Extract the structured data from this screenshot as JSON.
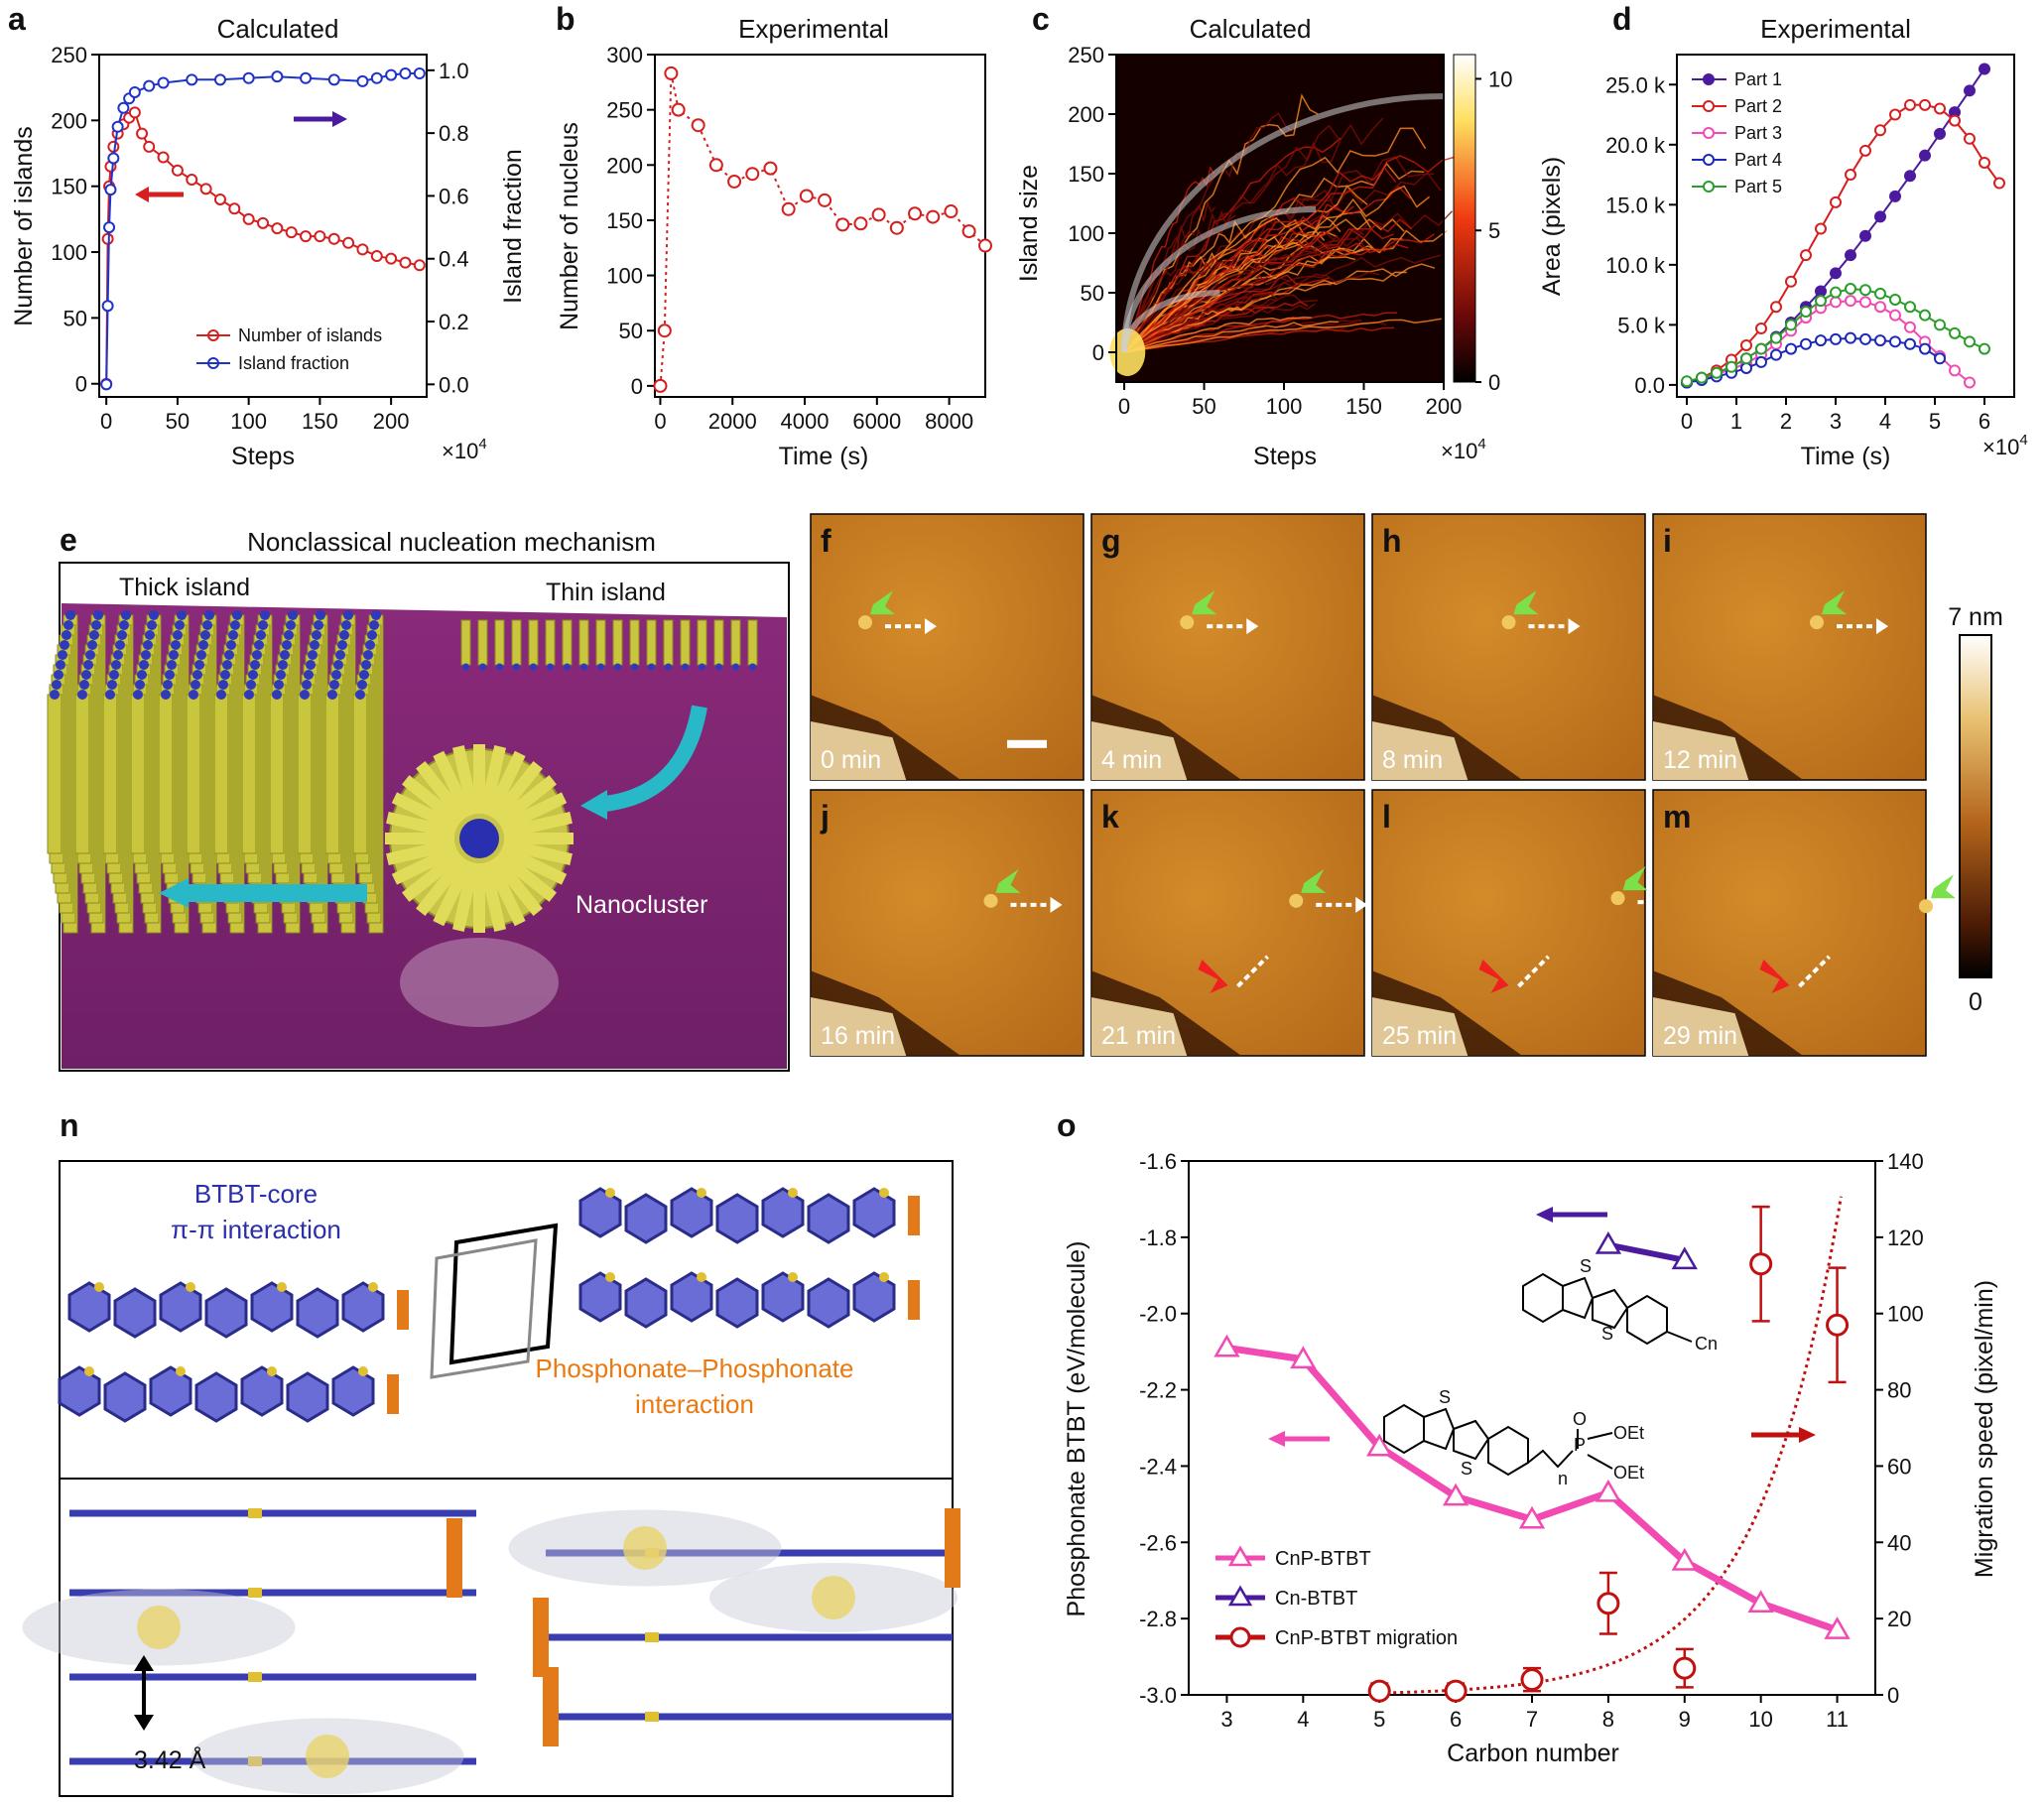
{
  "colors": {
    "red": "#d61f1f",
    "blue": "#1f33c8",
    "purple": "#4b1a9e",
    "magenta": "#f24ab3",
    "navy": "#1d2ab8",
    "green": "#2a9d2a",
    "darkred": "#c11010",
    "teal": "#29b8c8",
    "afm": "#c77d1e"
  },
  "panels": {
    "a": {
      "label": "a",
      "title": "Calculated",
      "xlabel": "Steps",
      "ylabel": "Number of islands",
      "y2label": "Island fraction",
      "xmult": "×10",
      "xexp": "4",
      "xticks": [
        "0",
        "50",
        "100",
        "150",
        "200"
      ],
      "yticks": [
        "0",
        "50",
        "100",
        "150",
        "200",
        "250"
      ],
      "y2ticks": [
        "0.0",
        "0.2",
        "0.4",
        "0.6",
        "0.8",
        "1.0"
      ],
      "legend": [
        "Number of islands",
        "Island fraction"
      ]
    },
    "b": {
      "label": "b",
      "title": "Experimental",
      "xlabel": "Time (s)",
      "ylabel": "Number of nucleus",
      "xticks": [
        "0",
        "2000",
        "4000",
        "6000",
        "8000"
      ],
      "yticks": [
        "0",
        "50",
        "100",
        "150",
        "200",
        "250",
        "300"
      ]
    },
    "c": {
      "label": "c",
      "title": "Calculated",
      "xlabel": "Steps",
      "ylabel": "Island size",
      "xmult": "×10",
      "xexp": "4",
      "xticks": [
        "0",
        "50",
        "100",
        "150",
        "200"
      ],
      "yticks": [
        "0",
        "50",
        "100",
        "150",
        "200",
        "250"
      ],
      "cbticks": [
        "0",
        "5",
        "10"
      ]
    },
    "d": {
      "label": "d",
      "title": "Experimental",
      "xlabel": "Time (s)",
      "ylabel": "Area (pixels)",
      "xmult": "×10",
      "xexp": "4",
      "xticks": [
        "0",
        "1",
        "2",
        "3",
        "4",
        "5",
        "6"
      ],
      "yticks": [
        "0.0",
        "5.0 k",
        "10.0 k",
        "15.0 k",
        "20.0 k",
        "25.0 k"
      ],
      "legend": [
        "Part 1",
        "Part 2",
        "Part 3",
        "Part 4",
        "Part 5"
      ]
    },
    "e": {
      "label": "e",
      "title": "Nonclassical nucleation mechanism",
      "thick": "Thick island",
      "thin": "Thin island",
      "cluster": "Nanocluster"
    },
    "afm": {
      "labels": [
        "f",
        "g",
        "h",
        "i",
        "j",
        "k",
        "l",
        "m"
      ],
      "times": [
        "0 min",
        "4 min",
        "8 min",
        "12 min",
        "16 min",
        "21 min",
        "25 min",
        "29 min"
      ],
      "cb_top": "7 nm",
      "cb_bottom": "0"
    },
    "n": {
      "label": "n",
      "core1": "BTBT-core",
      "core2": "π-π interaction",
      "phos1": "Phosphonate–Phosphonate",
      "phos2": "interaction",
      "dist": "3.42 Å"
    },
    "o": {
      "label": "o",
      "xlabel": "Carbon number",
      "ylabel": "Phosphonate BTBT (eV/molecule)",
      "y2label": "Migration speed (pixel/min)",
      "xticks": [
        "3",
        "4",
        "5",
        "6",
        "7",
        "8",
        "9",
        "10",
        "11"
      ],
      "yticks": [
        "-3.0",
        "-2.8",
        "-2.6",
        "-2.4",
        "-2.2",
        "-2.0",
        "-1.8",
        "-1.6"
      ],
      "y2ticks": [
        "0",
        "20",
        "40",
        "60",
        "80",
        "100",
        "120",
        "140"
      ],
      "legend": [
        "CnP-BTBT",
        "Cn-BTBT",
        "CnP-BTBT migration"
      ],
      "chem": {
        "S": "S",
        "Cn": "Cn",
        "OEt": "OEt",
        "P": "P",
        "O": "O",
        "n": "n"
      }
    }
  },
  "chart_data": [
    {
      "type": "line",
      "panel": "a",
      "title": "Calculated",
      "xlabel": "Steps",
      "ylabel": "Number of islands",
      "y2label": "Island fraction",
      "x_unit": "×10^4",
      "xlim": [
        0,
        220
      ],
      "ylim": [
        0,
        250
      ],
      "y2lim": [
        0,
        1.05
      ],
      "series": [
        {
          "name": "Number of islands",
          "axis": "left",
          "x": [
            0,
            1,
            2,
            3,
            5,
            8,
            12,
            16,
            20,
            25,
            30,
            40,
            50,
            60,
            70,
            80,
            90,
            100,
            110,
            120,
            130,
            140,
            150,
            160,
            170,
            180,
            190,
            200,
            210,
            220
          ],
          "values": [
            0,
            110,
            150,
            165,
            180,
            190,
            197,
            202,
            206,
            190,
            180,
            172,
            162,
            155,
            148,
            140,
            133,
            125,
            122,
            118,
            115,
            112,
            112,
            110,
            107,
            102,
            97,
            95,
            92,
            90
          ]
        },
        {
          "name": "Island fraction",
          "axis": "right",
          "x": [
            0,
            1,
            2,
            3,
            5,
            8,
            12,
            16,
            20,
            30,
            40,
            60,
            80,
            100,
            120,
            140,
            160,
            180,
            190,
            200,
            210,
            220
          ],
          "values": [
            0,
            0.25,
            0.5,
            0.62,
            0.72,
            0.82,
            0.88,
            0.91,
            0.93,
            0.95,
            0.96,
            0.97,
            0.97,
            0.975,
            0.98,
            0.975,
            0.97,
            0.965,
            0.975,
            0.985,
            0.99,
            0.99
          ]
        }
      ]
    },
    {
      "type": "line",
      "panel": "b",
      "title": "Experimental",
      "xlabel": "Time (s)",
      "ylabel": "Number of nucleus",
      "xlim": [
        0,
        9000
      ],
      "ylim": [
        0,
        300
      ],
      "series": [
        {
          "name": "Number of nucleus",
          "x": [
            0,
            120,
            300,
            500,
            1050,
            1550,
            2050,
            2550,
            3050,
            3550,
            4050,
            4550,
            5050,
            5550,
            6050,
            6550,
            7050,
            7550,
            8050,
            8550,
            9000
          ],
          "values": [
            0,
            50,
            283,
            250,
            236,
            200,
            185,
            192,
            197,
            160,
            172,
            168,
            146,
            147,
            155,
            143,
            156,
            153,
            158,
            140,
            127
          ]
        }
      ]
    },
    {
      "type": "heatmap",
      "panel": "c",
      "title": "Calculated",
      "xlabel": "Steps",
      "ylabel": "Island size",
      "x_unit": "×10^4",
      "xlim": [
        0,
        200
      ],
      "ylim": [
        -25,
        250
      ],
      "clim": [
        0,
        10
      ]
    },
    {
      "type": "line",
      "panel": "d",
      "title": "Experimental",
      "xlabel": "Time (s)",
      "ylabel": "Area (pixels)",
      "x_unit": "×10^4",
      "xlim": [
        0,
        6.5
      ],
      "ylim": [
        0,
        27000
      ],
      "series": [
        {
          "name": "Part 1",
          "x": [
            0,
            0.3,
            0.6,
            0.9,
            1.2,
            1.5,
            1.8,
            2.1,
            2.4,
            2.7,
            3.0,
            3.3,
            3.6,
            3.9,
            4.2,
            4.5,
            4.8,
            5.1,
            5.4,
            5.7,
            6.0
          ],
          "values": [
            200,
            500,
            900,
            1500,
            2200,
            3000,
            4000,
            5200,
            6500,
            7800,
            9300,
            10800,
            12400,
            14000,
            15700,
            17400,
            19100,
            20900,
            22700,
            24500,
            26300
          ]
        },
        {
          "name": "Part 2",
          "x": [
            0,
            0.3,
            0.6,
            0.9,
            1.2,
            1.5,
            1.8,
            2.1,
            2.4,
            2.7,
            3.0,
            3.3,
            3.6,
            3.9,
            4.2,
            4.5,
            4.8,
            5.1,
            5.4,
            5.7,
            6.0,
            6.3
          ],
          "values": [
            200,
            600,
            1200,
            2100,
            3300,
            4700,
            6500,
            8600,
            10800,
            13000,
            15200,
            17500,
            19500,
            21200,
            22500,
            23300,
            23300,
            23000,
            22000,
            20500,
            18500,
            16800
          ]
        },
        {
          "name": "Part 3",
          "x": [
            0,
            0.3,
            0.6,
            0.9,
            1.2,
            1.5,
            1.8,
            2.1,
            2.4,
            2.7,
            3.0,
            3.3,
            3.6,
            3.9,
            4.2,
            4.5,
            4.8,
            5.1,
            5.4,
            5.7
          ],
          "values": [
            200,
            500,
            900,
            1300,
            1800,
            2500,
            3400,
            4500,
            5600,
            6400,
            6900,
            7000,
            6900,
            6500,
            5800,
            4800,
            3600,
            2400,
            1200,
            200
          ]
        },
        {
          "name": "Part 4",
          "x": [
            0,
            0.3,
            0.6,
            0.9,
            1.2,
            1.5,
            1.8,
            2.1,
            2.4,
            2.7,
            3.0,
            3.3,
            3.6,
            3.9,
            4.2,
            4.5,
            4.8,
            5.1
          ],
          "values": [
            200,
            400,
            700,
            1000,
            1400,
            1900,
            2500,
            3000,
            3400,
            3700,
            3800,
            3900,
            3800,
            3700,
            3600,
            3400,
            3000,
            2200
          ]
        },
        {
          "name": "Part 5",
          "x": [
            0,
            0.3,
            0.6,
            0.9,
            1.2,
            1.5,
            1.8,
            2.1,
            2.4,
            2.7,
            3.0,
            3.3,
            3.6,
            3.9,
            4.2,
            4.5,
            4.8,
            5.1,
            5.4,
            5.7,
            6.0
          ],
          "values": [
            300,
            600,
            1000,
            1500,
            2200,
            3000,
            3900,
            5000,
            6100,
            7000,
            7700,
            8000,
            7900,
            7600,
            7100,
            6500,
            5800,
            5000,
            4300,
            3600,
            3000
          ]
        }
      ]
    },
    {
      "type": "line",
      "panel": "o",
      "xlabel": "Carbon number",
      "ylabel": "Phosphonate BTBT (eV/molecule)",
      "y2label": "Migration speed (pixel/min)",
      "xlim": [
        2.5,
        11.5
      ],
      "ylim": [
        -3.0,
        -1.6
      ],
      "y2lim": [
        0,
        140
      ],
      "series": [
        {
          "name": "CnP-BTBT",
          "axis": "left",
          "x": [
            3,
            4,
            5,
            6,
            7,
            8,
            9,
            10,
            11
          ],
          "values": [
            -2.09,
            -2.12,
            -2.35,
            -2.48,
            -2.54,
            -2.47,
            -2.65,
            -2.76,
            -2.83
          ]
        },
        {
          "name": "Cn-BTBT",
          "axis": "left",
          "x": [
            8,
            9
          ],
          "values": [
            -1.82,
            -1.86
          ]
        },
        {
          "name": "CnP-BTBT migration",
          "axis": "right",
          "x": [
            5,
            6,
            7,
            8,
            9,
            10,
            11
          ],
          "values": [
            1,
            1,
            4,
            24,
            7,
            113,
            97
          ],
          "errors": [
            2,
            2,
            3,
            8,
            5,
            15,
            15
          ]
        }
      ]
    }
  ]
}
